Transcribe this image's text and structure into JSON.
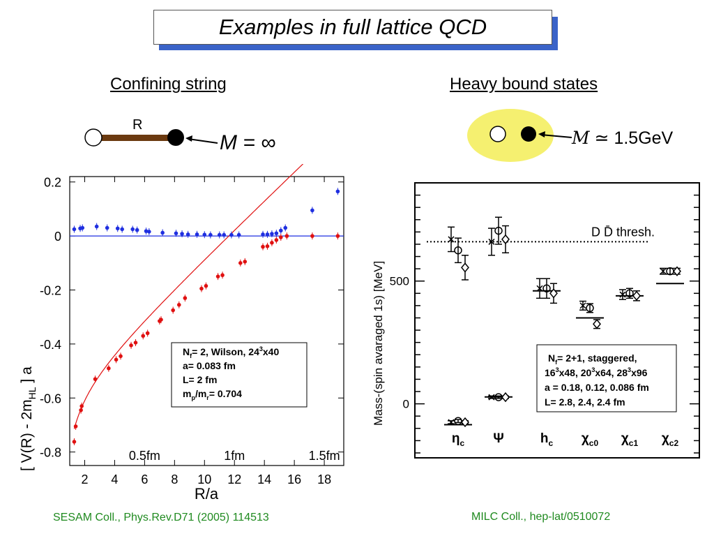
{
  "slide": {
    "title": "Examples in full lattice QCD",
    "left_heading": "Confining string ",
    "right_heading": "Heavy bound states",
    "left_diagram_label": "R",
    "left_citation": "SESAM Coll., Phys.Rev.D71 (2005) 114513",
    "right_citation": "MILC Coll., hep-lat/0510072",
    "colors": {
      "title_shadow": "#3a63c8",
      "string": "#6b3a10",
      "halo": "#f5f070",
      "citation": "#1f8a1f"
    }
  },
  "chart_data": [
    {
      "type": "scatter",
      "xlabel": "R/a",
      "ylabel_parts": {
        "a": "[ V(R) - 2m",
        "sub": "HL",
        "b": " ] a"
      },
      "xlim": [
        1,
        19.3
      ],
      "ylim": [
        -0.85,
        0.22
      ],
      "xticks": [
        2,
        4,
        6,
        8,
        10,
        12,
        14,
        16,
        18
      ],
      "yticks": [
        0.2,
        0,
        -0.2,
        -0.4,
        -0.6,
        -0.8
      ],
      "ytick_labels": [
        "0.2",
        "0",
        "-0.2",
        "-0.4",
        "-0.6",
        "-0.8"
      ],
      "physical_labels": [
        {
          "text": "0.5fm",
          "x": 6.0
        },
        {
          "text": "1fm",
          "x": 12.0
        },
        {
          "text": "1.5fm",
          "x": 18.0
        }
      ],
      "info_box": {
        "line1_a": "N",
        "line1_sub": "f",
        "line1_b": "= 2, Wilson, 24",
        "line1_sup": "3",
        "line1_c": "x40",
        "line2": "a= 0.083 fm",
        "line3": "L= 2 fm",
        "line4_a": "m",
        "line4_sub1": "p",
        "line4_b": "/m",
        "line4_sub2": "r",
        "line4_c": "= 0.704"
      },
      "series": [
        {
          "color": "#1f2fe0",
          "points": [
            [
              1.3,
              0.025
            ],
            [
              1.7,
              0.028
            ],
            [
              1.85,
              0.03
            ],
            [
              2.8,
              0.035
            ],
            [
              3.5,
              0.03
            ],
            [
              4.2,
              0.028
            ],
            [
              4.5,
              0.025
            ],
            [
              5.2,
              0.025
            ],
            [
              5.5,
              0.022
            ],
            [
              6.1,
              0.018
            ],
            [
              6.3,
              0.016
            ],
            [
              7.2,
              0.012
            ],
            [
              8.1,
              0.01
            ],
            [
              8.5,
              0.008
            ],
            [
              8.9,
              0.006
            ],
            [
              9.5,
              0.006
            ],
            [
              10,
              0.005
            ],
            [
              10.4,
              0.004
            ],
            [
              11,
              0.004
            ],
            [
              11.3,
              0.004
            ],
            [
              11.8,
              0.004
            ],
            [
              12.3,
              0.004
            ],
            [
              13.9,
              0.006
            ],
            [
              14.2,
              0.006
            ],
            [
              14.5,
              0.008
            ],
            [
              14.8,
              0.01
            ],
            [
              15.1,
              0.02
            ],
            [
              15.4,
              0.03
            ],
            [
              17.2,
              0.095
            ],
            [
              18.9,
              0.165
            ]
          ]
        },
        {
          "color": "#e01010",
          "points": [
            [
              1.3,
              -0.762
            ],
            [
              1.4,
              -0.705
            ],
            [
              1.75,
              -0.645
            ],
            [
              1.8,
              -0.63
            ],
            [
              2.7,
              -0.53
            ],
            [
              3.6,
              -0.49
            ],
            [
              4.1,
              -0.458
            ],
            [
              4.4,
              -0.445
            ],
            [
              5.1,
              -0.405
            ],
            [
              5.4,
              -0.395
            ],
            [
              5.9,
              -0.37
            ],
            [
              6.2,
              -0.36
            ],
            [
              7.0,
              -0.315
            ],
            [
              7.1,
              -0.31
            ],
            [
              7.9,
              -0.275
            ],
            [
              8.3,
              -0.255
            ],
            [
              8.7,
              -0.23
            ],
            [
              9.8,
              -0.195
            ],
            [
              10.1,
              -0.185
            ],
            [
              10.9,
              -0.15
            ],
            [
              11.2,
              -0.145
            ],
            [
              12.4,
              -0.1
            ],
            [
              12.7,
              -0.095
            ],
            [
              13.9,
              -0.04
            ],
            [
              14.2,
              -0.038
            ],
            [
              14.5,
              -0.025
            ],
            [
              14.8,
              -0.015
            ],
            [
              15.1,
              -0.005
            ],
            [
              15.5,
              0.0
            ],
            [
              17.2,
              0.0
            ],
            [
              18.9,
              0.0
            ]
          ]
        }
      ],
      "fit_curve": {
        "color": "#e01010",
        "form": "V0 - e/R + sigma*R",
        "V0": -0.59,
        "e": 0.25,
        "sigma": 0.0526
      }
    },
    {
      "type": "scatter",
      "ylabel": "Mass-(spin avaraged 1s) [MeV]",
      "ylim": [
        -220,
        900
      ],
      "ytick_labels": [
        "500",
        "0"
      ],
      "yticks": [
        500,
        0
      ],
      "categories": [
        "η_c",
        "Ψ",
        "h_c",
        "χ_c0",
        "χ_c1",
        "χ_c2"
      ],
      "threshold": {
        "label": "D D̄ thresh.",
        "value": 660
      },
      "info_box": {
        "line1_a": "N",
        "line1_sub": "f",
        "line1_b": "= 2+1, staggered,",
        "line2_a": "16",
        "line2_sup1": "3",
        "line2_b": "x48, 20",
        "line2_sup2": "3",
        "line2_c": "x64, 28",
        "line2_sup3": "3",
        "line2_d": "x96",
        "line3": " a = 0.18, 0.12, 0.086 fm",
        "line4": " L= 2.8, 2.4, 2.4 fm"
      },
      "experiment": [
        -85,
        28,
        460,
        350,
        440,
        490
      ],
      "lattice": [
        {
          "category": 0,
          "cross": 670,
          "circle": 625,
          "diamond": 555,
          "err": 50
        },
        {
          "category": 0,
          "cross": -75,
          "circle": -70,
          "diamond": -75,
          "err": 6
        },
        {
          "category": 1,
          "cross": 660,
          "circle": 705,
          "diamond": 670,
          "err": 55
        },
        {
          "category": 1,
          "cross": 27,
          "circle": 27,
          "diamond": 27,
          "err": 5
        },
        {
          "category": 2,
          "cross": 470,
          "circle": 470,
          "diamond": 450,
          "err": 40
        },
        {
          "category": 3,
          "cross": 400,
          "circle": 390,
          "diamond": 325,
          "err": 18
        },
        {
          "category": 4,
          "cross": 445,
          "circle": 450,
          "diamond": 440,
          "err": 20
        },
        {
          "category": 5,
          "cross": 540,
          "circle": 540,
          "diamond": 540,
          "err": 12
        }
      ]
    }
  ]
}
